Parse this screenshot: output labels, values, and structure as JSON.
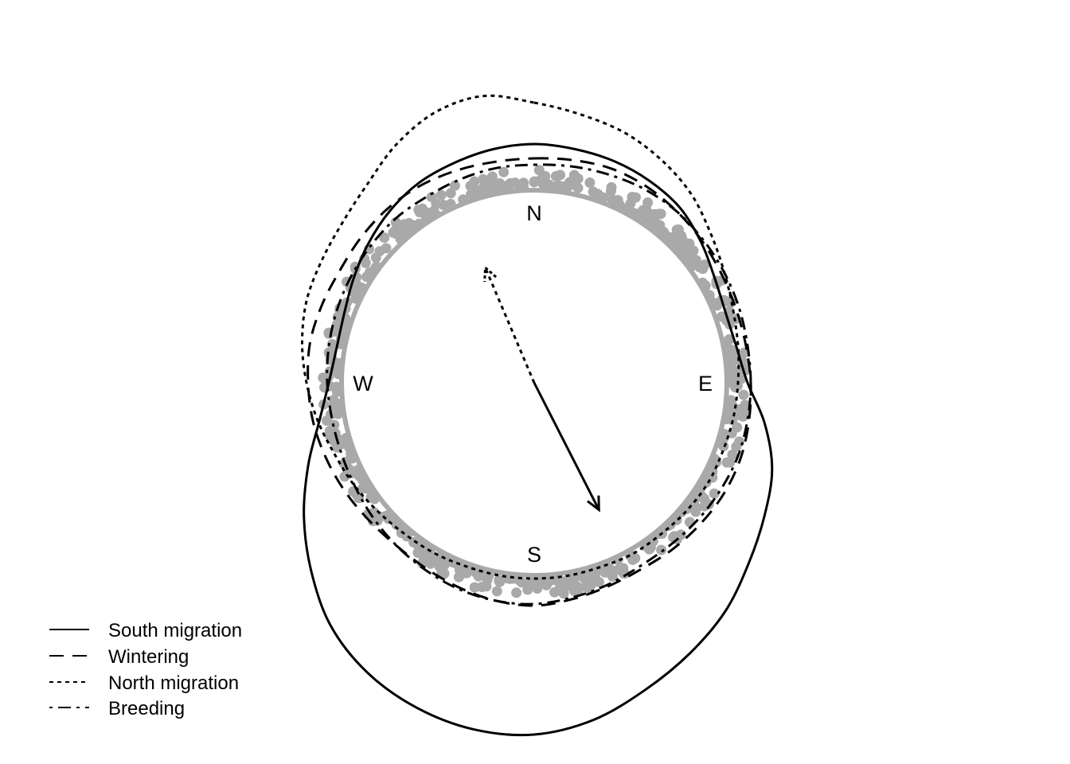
{
  "chart_data": {
    "type": "circular-density",
    "directions": {
      "north": "N",
      "east": "E",
      "south": "S",
      "west": "W"
    },
    "raw_point_color": "#a9a9a9",
    "line_color": "#000000",
    "series": [
      {
        "name": "South migration",
        "line_style": "solid",
        "mean_direction_deg": 153,
        "mean_resultant_length": 0.74,
        "density": [
          0.29,
          0.28,
          0.27,
          0.25,
          0.22,
          0.16,
          0.1,
          0.07,
          0.08,
          0.13,
          0.26,
          0.38,
          0.46,
          0.55,
          0.66,
          0.75,
          0.84,
          0.94,
          1.0,
          1.0,
          0.96,
          0.89,
          0.78,
          0.62,
          0.46,
          0.3,
          0.16,
          0.08,
          0.05,
          0.06,
          0.1,
          0.15,
          0.2,
          0.24,
          0.26,
          0.28
        ]
      },
      {
        "name": "Wintering",
        "line_style": "dashed",
        "mean_direction_deg": null,
        "mean_resultant_length": null,
        "density": [
          0.2,
          0.21,
          0.22,
          0.21,
          0.19,
          0.17,
          0.15,
          0.14,
          0.14,
          0.15,
          0.16,
          0.17,
          0.17,
          0.16,
          0.15,
          0.14,
          0.15,
          0.17,
          0.19,
          0.18,
          0.16,
          0.14,
          0.13,
          0.14,
          0.16,
          0.18,
          0.2,
          0.21,
          0.22,
          0.21,
          0.2,
          0.21,
          0.22,
          0.22,
          0.21,
          0.2
        ]
      },
      {
        "name": "North migration",
        "line_style": "dotted",
        "mean_direction_deg": 337,
        "mean_resultant_length": 0.65,
        "density": [
          0.55,
          0.5,
          0.46,
          0.4,
          0.33,
          0.24,
          0.17,
          0.12,
          0.09,
          0.07,
          0.06,
          0.05,
          0.05,
          0.04,
          0.03,
          0.03,
          0.02,
          0.02,
          0.02,
          0.02,
          0.02,
          0.03,
          0.04,
          0.06,
          0.09,
          0.12,
          0.17,
          0.22,
          0.27,
          0.31,
          0.33,
          0.36,
          0.42,
          0.52,
          0.6,
          0.62
        ]
      },
      {
        "name": "Breeding",
        "line_style": "dot-dash",
        "mean_direction_deg": null,
        "mean_resultant_length": null,
        "density": [
          0.16,
          0.17,
          0.18,
          0.19,
          0.19,
          0.18,
          0.17,
          0.16,
          0.15,
          0.15,
          0.15,
          0.15,
          0.14,
          0.13,
          0.12,
          0.12,
          0.14,
          0.16,
          0.18,
          0.18,
          0.17,
          0.15,
          0.13,
          0.11,
          0.09,
          0.08,
          0.08,
          0.09,
          0.1,
          0.11,
          0.12,
          0.13,
          0.14,
          0.14,
          0.15,
          0.16
        ]
      }
    ],
    "legend_position": "bottom-left"
  }
}
